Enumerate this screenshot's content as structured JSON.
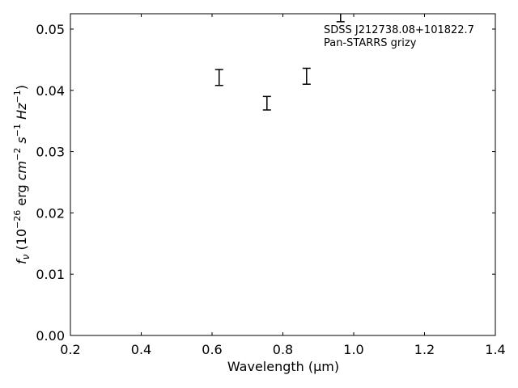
{
  "chart_data": {
    "type": "scatter",
    "title": "",
    "xlabel": "Wavelength (μm)",
    "ylabel": {
      "prefix": "f",
      "sub": "ν",
      "open": " (10",
      "exp1": "−26",
      "mid1": " erg ",
      "cm": "cm",
      "exp2": "−2",
      "mid2": " s",
      "exp3": "−1",
      "mid3": " Hz",
      "exp4": "−1",
      "close": ")"
    },
    "xlim": [
      0.2,
      1.4
    ],
    "ylim": [
      0.0,
      0.0525
    ],
    "xticks": [
      0.2,
      0.4,
      0.6,
      0.8,
      1.0,
      1.2,
      1.4
    ],
    "xtick_labels": [
      "0.2",
      "0.4",
      "0.6",
      "0.8",
      "1.0",
      "1.2",
      "1.4"
    ],
    "yticks": [
      0.0,
      0.01,
      0.02,
      0.03,
      0.04,
      0.05
    ],
    "ytick_labels": [
      "0.00",
      "0.01",
      "0.02",
      "0.03",
      "0.04",
      "0.05"
    ],
    "grid": false,
    "annotations": [
      "SDSS J212738.08+101822.7",
      "Pan-STARRS grizy"
    ],
    "series": [
      {
        "x": [
          0.62,
          0.755,
          0.867,
          0.963
        ],
        "y": [
          0.0421,
          0.0379,
          0.0423,
          0.0535
        ],
        "yerr": [
          0.0013,
          0.0011,
          0.0013,
          0.0023
        ]
      }
    ]
  }
}
